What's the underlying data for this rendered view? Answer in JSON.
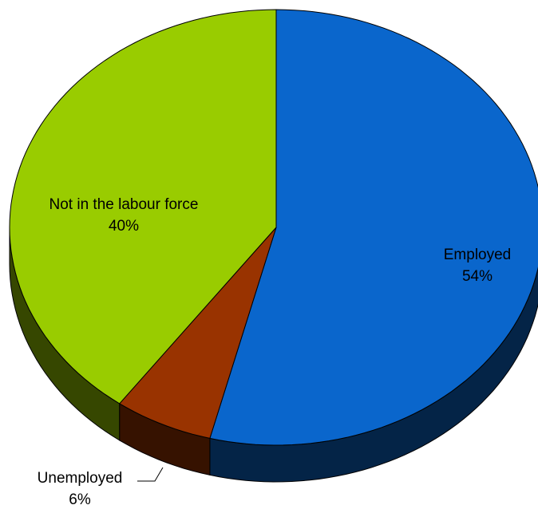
{
  "chart_data": {
    "type": "pie",
    "categories": [
      "Employed",
      "Unemployed",
      "Not in the labour force"
    ],
    "values": [
      54,
      6,
      40
    ],
    "value_labels": [
      "54%",
      "6%",
      "40%"
    ],
    "colors": [
      "#0a66cc",
      "#993300",
      "#99cc00"
    ]
  }
}
